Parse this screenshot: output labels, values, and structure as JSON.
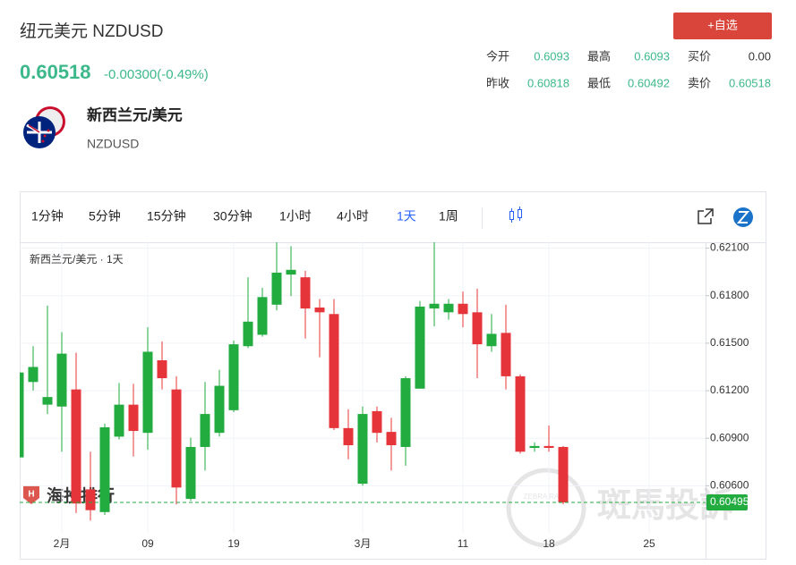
{
  "header": {
    "title": "纽元美元 NZDUSD",
    "price": "0.60518",
    "change": "-0.00300(-0.49%)",
    "button": "+自选",
    "stats": [
      {
        "label": "今开",
        "value": "0.6093"
      },
      {
        "label": "最高",
        "value": "0.6093"
      },
      {
        "label": "买价",
        "value": "0.00"
      },
      {
        "label": "昨收",
        "value": "0.60818"
      },
      {
        "label": "最低",
        "value": "0.60492"
      },
      {
        "label": "卖价",
        "value": "0.60518"
      }
    ]
  },
  "instrument": {
    "name": "新西兰元/美元",
    "code": "NZDUSD"
  },
  "toolbar": {
    "intervals": [
      "1分钟",
      "5分钟",
      "15分钟",
      "30分钟",
      "1小时",
      "4小时",
      "1天",
      "1周"
    ],
    "active": 6
  },
  "watermarks": {
    "logo": "海投排行",
    "brand": "斑馬投訴",
    "badge": "ZEBRA RANK"
  },
  "chart_data": {
    "type": "candlestick",
    "label": "新西兰元/美元 · 1天",
    "categories": [
      null,
      null,
      null,
      "2月",
      null,
      null,
      null,
      null,
      null,
      "09",
      null,
      null,
      null,
      null,
      null,
      "19",
      null,
      null,
      null,
      null,
      null,
      null,
      null,
      null,
      "3月",
      null,
      null,
      null,
      null,
      null,
      null,
      "11",
      null,
      null,
      null,
      null,
      null,
      "18",
      null,
      null,
      null,
      null,
      null,
      null,
      "25",
      null,
      null,
      null,
      null
    ],
    "open": [
      0.60779,
      0.61255,
      0.61112,
      0.611,
      0.61208,
      0.60577,
      0.60434,
      0.6091,
      0.61112,
      0.60934,
      0.61392,
      0.61208,
      0.60517,
      0.60845,
      0.60934,
      0.61077,
      0.61481,
      0.61553,
      0.61743,
      0.61933,
      0.61916,
      0.61725,
      0.61684,
      0.60964,
      0.60613,
      0.61071,
      0.6094,
      0.60845,
      0.61213,
      0.61719,
      0.61695,
      0.61749,
      0.61695,
      0.61481,
      0.61565,
      0.61291,
      0.60839,
      0.60851,
      0.60845,
      null,
      null,
      null,
      null,
      null,
      null,
      null,
      null,
      null,
      null
    ],
    "high": [
      0.6135,
      0.61481,
      0.61737,
      0.6157,
      0.6144,
      0.60815,
      0.60993,
      0.61249,
      0.61243,
      0.616,
      0.61511,
      0.61291,
      0.60904,
      0.61255,
      0.61332,
      0.61517,
      0.61916,
      0.6185,
      0.62171,
      0.62112,
      0.61957,
      0.61779,
      0.61779,
      0.61083,
      0.611,
      0.611,
      0.61029,
      0.61291,
      0.61767,
      0.62159,
      0.61779,
      0.61826,
      0.61844,
      0.61684,
      0.61743,
      0.61303,
      0.60874,
      0.60981,
      0.60851,
      null,
      null,
      null,
      null,
      null,
      null,
      null,
      null,
      null,
      null
    ],
    "low": [
      0.60755,
      0.61201,
      0.61053,
      0.60815,
      0.60428,
      0.6038,
      0.60416,
      0.60892,
      0.60785,
      0.60827,
      0.61208,
      0.60482,
      0.60505,
      0.60696,
      0.6091,
      0.61065,
      0.61469,
      0.61541,
      0.61707,
      0.61797,
      0.6153,
      0.61411,
      0.60952,
      0.60767,
      0.60601,
      0.60874,
      0.60696,
      0.60726,
      0.61213,
      0.61606,
      0.61648,
      0.616,
      0.61279,
      0.61446,
      0.61208,
      0.60803,
      0.60815,
      0.60815,
      0.60482,
      null,
      null,
      null,
      null,
      null,
      null,
      null,
      null,
      null,
      null
    ],
    "close": [
      0.61315,
      0.6135,
      0.6116,
      0.61434,
      0.60488,
      0.60446,
      0.60969,
      0.61112,
      0.60946,
      0.61446,
      0.61279,
      0.60589,
      0.60845,
      0.61053,
      0.61231,
      0.61493,
      0.61636,
      0.61791,
      0.61945,
      0.61963,
      0.61719,
      0.61695,
      0.60964,
      0.60856,
      0.61053,
      0.60934,
      0.60856,
      0.61279,
      0.61731,
      0.61749,
      0.61749,
      0.61684,
      0.61493,
      0.61559,
      0.61291,
      0.60815,
      0.60851,
      0.60839,
      0.60495,
      null,
      null,
      null,
      null,
      null,
      null,
      null,
      null,
      null,
      null
    ],
    "up_color": "#22ab3f",
    "down_color": "#e5353a",
    "ylim": [
      0.60303,
      0.62137
    ],
    "yticks": [
      {
        "value": 0.606,
        "label": "0.60600"
      },
      {
        "value": 0.609,
        "label": "0.60900"
      },
      {
        "value": 0.612,
        "label": "0.61200"
      },
      {
        "value": 0.615,
        "label": "0.61500"
      },
      {
        "value": 0.618,
        "label": "0.61800"
      },
      {
        "value": 0.621,
        "label": "0.62100"
      }
    ],
    "grid": true,
    "last_value": 0.60495,
    "last_value_label": "0.60495"
  }
}
